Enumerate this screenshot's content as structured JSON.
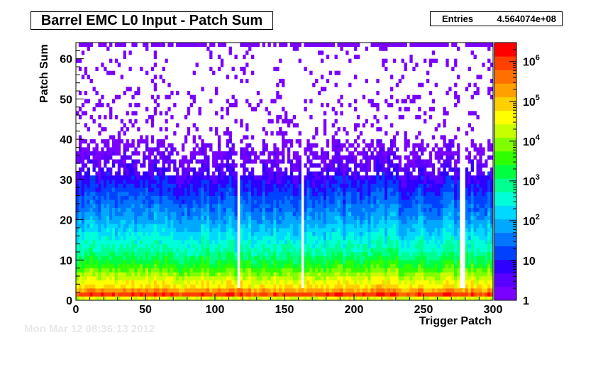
{
  "title": "Barrel EMC L0 Input - Patch Sum",
  "stats": {
    "label": "Entries",
    "value": "4.564074e+08"
  },
  "date_stamp": "Mon Mar 12 08:36:13 2012",
  "chart_data": {
    "type": "heatmap",
    "xlabel": "Trigger Patch",
    "ylabel": "Patch Sum",
    "xlim": [
      0,
      300
    ],
    "ylim": [
      0,
      64
    ],
    "x_ticks": [
      0,
      50,
      100,
      150,
      200,
      250,
      300
    ],
    "y_ticks": [
      0,
      10,
      20,
      30,
      40,
      50,
      60
    ],
    "z_scale": "log",
    "zlim": [
      1,
      3000000
    ],
    "z_ticks": [
      {
        "value": 1,
        "label": "1"
      },
      {
        "value": 10,
        "label": "10"
      },
      {
        "value": 100,
        "label": "10",
        "exp": "2"
      },
      {
        "value": 1000,
        "label": "10",
        "exp": "3"
      },
      {
        "value": 10000,
        "label": "10",
        "exp": "4"
      },
      {
        "value": 100000,
        "label": "10",
        "exp": "5"
      },
      {
        "value": 1000000,
        "label": "10",
        "exp": "6"
      }
    ],
    "empty_columns": [
      116,
      162,
      277,
      278,
      279
    ],
    "profile": [
      {
        "y": 0,
        "count": 30000
      },
      {
        "y": 1,
        "count": 1000000
      },
      {
        "y": 2,
        "count": 200000
      },
      {
        "y": 3,
        "count": 60000
      },
      {
        "y": 5,
        "count": 20000
      },
      {
        "y": 8,
        "count": 3000
      },
      {
        "y": 12,
        "count": 600
      },
      {
        "y": 16,
        "count": 200
      },
      {
        "y": 20,
        "count": 60
      },
      {
        "y": 25,
        "count": 20
      },
      {
        "y": 30,
        "count": 6
      },
      {
        "y": 35,
        "count": 2
      },
      {
        "y": 40,
        "count": 1
      },
      {
        "y": 63,
        "count": 1
      }
    ],
    "colors": [
      "#7a00ff",
      "#5a00ff",
      "#2e00ff",
      "#0040ff",
      "#0075ff",
      "#00a8ff",
      "#00d8ff",
      "#00ffd8",
      "#00ff90",
      "#00ff40",
      "#30ff00",
      "#80ff00",
      "#c8ff00",
      "#ffff00",
      "#ffd000",
      "#ffa000",
      "#ff7000",
      "#ff4000",
      "#ff0000"
    ]
  }
}
